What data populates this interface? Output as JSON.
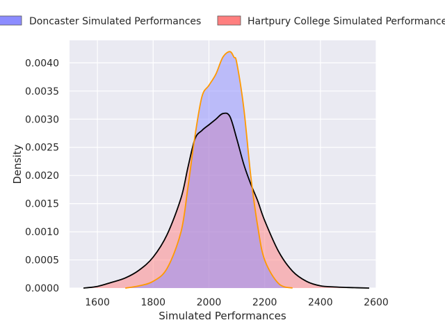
{
  "chart_data": {
    "type": "area",
    "xlabel": "Simulated Performances",
    "ylabel": "Density",
    "xlim": [
      1500,
      2600
    ],
    "ylim": [
      0,
      0.0044
    ],
    "x_ticks": [
      1600,
      1800,
      2000,
      2200,
      2400,
      2600
    ],
    "y_ticks": [
      0.0,
      0.0005,
      0.001,
      0.0015,
      0.002,
      0.0025,
      0.003,
      0.0035,
      0.004
    ],
    "y_tick_labels": [
      "0.0000",
      "0.0005",
      "0.0010",
      "0.0015",
      "0.0020",
      "0.0025",
      "0.0030",
      "0.0035",
      "0.0040"
    ],
    "grid": true,
    "legend_position": "top",
    "series": [
      {
        "name": "Doncaster Simulated Performances",
        "fill": "#8c8cff",
        "line": "#ff9900",
        "x": [
          1700,
          1750,
          1800,
          1850,
          1900,
          1925,
          1950,
          1975,
          2000,
          2025,
          2050,
          2075,
          2090,
          2100,
          2125,
          2150,
          2175,
          2200,
          2250,
          2300
        ],
        "y": [
          0.0,
          4e-05,
          0.00012,
          0.00035,
          0.001,
          0.0018,
          0.0027,
          0.0034,
          0.0036,
          0.0038,
          0.0041,
          0.0042,
          0.0041,
          0.004,
          0.0032,
          0.002,
          0.0011,
          0.0005,
          8e-05,
          0.0
        ]
      },
      {
        "name": "Hartpury College Simulated Performances",
        "fill": "#ff7f7f",
        "line": "#000000",
        "x": [
          1550,
          1600,
          1650,
          1700,
          1750,
          1800,
          1850,
          1900,
          1925,
          1950,
          1975,
          2000,
          2025,
          2050,
          2075,
          2100,
          2125,
          2150,
          2175,
          2200,
          2250,
          2300,
          2350,
          2400,
          2450,
          2500,
          2575
        ],
        "y": [
          0.0,
          3e-05,
          0.0001,
          0.00018,
          0.00032,
          0.00055,
          0.00095,
          0.0016,
          0.00215,
          0.00265,
          0.0028,
          0.0029,
          0.003,
          0.0031,
          0.00305,
          0.00265,
          0.0022,
          0.00185,
          0.00155,
          0.0012,
          0.00065,
          0.0003,
          0.00012,
          4e-05,
          2e-05,
          1e-05,
          0.0
        ]
      }
    ]
  }
}
